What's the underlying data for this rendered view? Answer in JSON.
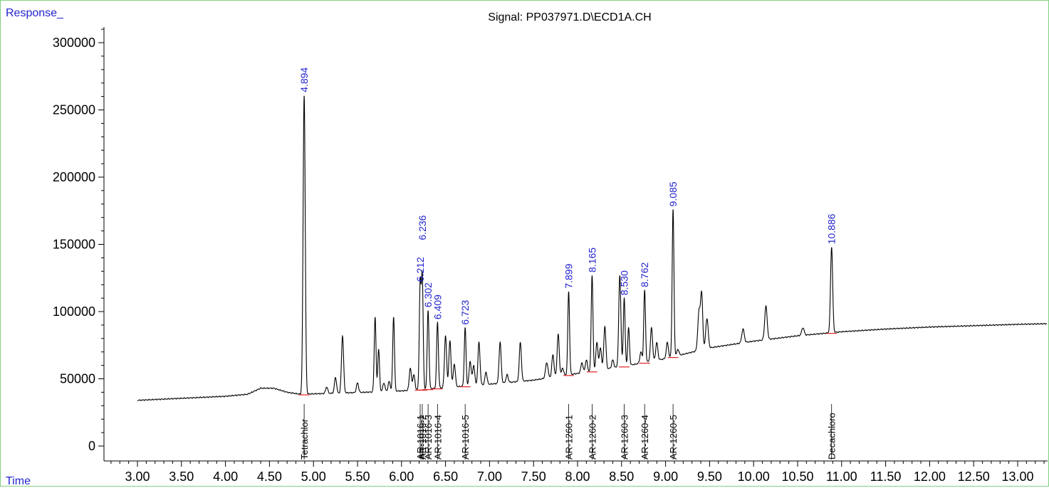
{
  "header": {
    "response_label": "Response_",
    "time_label": "Time"
  },
  "colors": {
    "frame": "#7fd17f",
    "signal": "#000000",
    "peak_label": "#2222cc",
    "baseline_mark": "#e02020"
  },
  "chart_data": {
    "type": "line",
    "title": "Signal: PP037971.D\\ECD1A.CH",
    "xlabel": "Time",
    "ylabel": "Response_",
    "xlim": [
      2.94,
      13.33
    ],
    "ylim": [
      -8000,
      315000
    ],
    "grid": false,
    "y_ticks": [
      0,
      50000,
      100000,
      150000,
      200000,
      250000,
      300000
    ],
    "x_ticks": [
      3.0,
      3.5,
      4.0,
      4.5,
      5.0,
      5.5,
      6.0,
      6.5,
      7.0,
      7.5,
      8.0,
      8.5,
      9.0,
      9.5,
      10.0,
      10.5,
      11.0,
      11.5,
      12.0,
      12.5,
      13.0
    ],
    "x_tick_labels": [
      "3.00",
      "3.50",
      "4.00",
      "4.50",
      "5.00",
      "5.50",
      "6.00",
      "6.50",
      "7.00",
      "7.50",
      "8.00",
      "8.50",
      "9.00",
      "9.50",
      "10.00",
      "10.50",
      "11.00",
      "11.50",
      "12.00",
      "12.50",
      "13.00"
    ],
    "baseline_points": [
      [
        3.0,
        34000
      ],
      [
        3.5,
        35500
      ],
      [
        4.0,
        37000
      ],
      [
        4.25,
        38500
      ],
      [
        4.4,
        43000
      ],
      [
        4.55,
        43000
      ],
      [
        4.7,
        40000
      ],
      [
        4.85,
        38500
      ],
      [
        5.0,
        38800
      ],
      [
        5.5,
        39800
      ],
      [
        6.0,
        41000
      ],
      [
        6.5,
        43500
      ],
      [
        7.0,
        46000
      ],
      [
        7.5,
        49000
      ],
      [
        8.0,
        54000
      ],
      [
        8.5,
        59000
      ],
      [
        9.0,
        65000
      ],
      [
        9.5,
        73000
      ],
      [
        10.0,
        78000
      ],
      [
        10.5,
        82000
      ],
      [
        11.0,
        85000
      ],
      [
        11.5,
        87000
      ],
      [
        12.0,
        88500
      ],
      [
        12.5,
        89500
      ],
      [
        13.0,
        90500
      ],
      [
        13.33,
        91000
      ]
    ],
    "peaks": [
      {
        "t": 4.894,
        "h": 261000,
        "w": 0.012
      },
      {
        "t": 5.15,
        "h": 44000,
        "w": 0.012
      },
      {
        "t": 5.25,
        "h": 51000,
        "w": 0.012
      },
      {
        "t": 5.33,
        "h": 82000,
        "w": 0.012
      },
      {
        "t": 5.5,
        "h": 47000,
        "w": 0.012
      },
      {
        "t": 5.7,
        "h": 96000,
        "w": 0.01
      },
      {
        "t": 5.74,
        "h": 72000,
        "w": 0.01
      },
      {
        "t": 5.8,
        "h": 47000,
        "w": 0.012
      },
      {
        "t": 5.86,
        "h": 48000,
        "w": 0.012
      },
      {
        "t": 5.91,
        "h": 96000,
        "w": 0.01
      },
      {
        "t": 6.1,
        "h": 58000,
        "w": 0.012
      },
      {
        "t": 6.14,
        "h": 53000,
        "w": 0.012
      },
      {
        "t": 6.212,
        "h": 120000,
        "w": 0.01
      },
      {
        "t": 6.236,
        "h": 125000,
        "w": 0.01
      },
      {
        "t": 6.302,
        "h": 101000,
        "w": 0.01
      },
      {
        "t": 6.409,
        "h": 92000,
        "w": 0.01
      },
      {
        "t": 6.5,
        "h": 82000,
        "w": 0.012
      },
      {
        "t": 6.55,
        "h": 78000,
        "w": 0.012
      },
      {
        "t": 6.6,
        "h": 61000,
        "w": 0.012
      },
      {
        "t": 6.723,
        "h": 88000,
        "w": 0.01
      },
      {
        "t": 6.78,
        "h": 63000,
        "w": 0.012
      },
      {
        "t": 6.82,
        "h": 60000,
        "w": 0.012
      },
      {
        "t": 6.88,
        "h": 77000,
        "w": 0.012
      },
      {
        "t": 6.96,
        "h": 55000,
        "w": 0.012
      },
      {
        "t": 7.12,
        "h": 77000,
        "w": 0.012
      },
      {
        "t": 7.2,
        "h": 53000,
        "w": 0.012
      },
      {
        "t": 7.35,
        "h": 77000,
        "w": 0.012
      },
      {
        "t": 7.65,
        "h": 62000,
        "w": 0.014
      },
      {
        "t": 7.72,
        "h": 68000,
        "w": 0.012
      },
      {
        "t": 7.78,
        "h": 83000,
        "w": 0.012
      },
      {
        "t": 7.83,
        "h": 58000,
        "w": 0.012
      },
      {
        "t": 7.899,
        "h": 115000,
        "w": 0.01
      },
      {
        "t": 8.05,
        "h": 62000,
        "w": 0.012
      },
      {
        "t": 8.1,
        "h": 64000,
        "w": 0.012
      },
      {
        "t": 8.165,
        "h": 127000,
        "w": 0.01
      },
      {
        "t": 8.22,
        "h": 77000,
        "w": 0.012
      },
      {
        "t": 8.26,
        "h": 73000,
        "w": 0.012
      },
      {
        "t": 8.31,
        "h": 89000,
        "w": 0.012
      },
      {
        "t": 8.4,
        "h": 64000,
        "w": 0.012
      },
      {
        "t": 8.48,
        "h": 127000,
        "w": 0.012
      },
      {
        "t": 8.53,
        "h": 110000,
        "w": 0.01
      },
      {
        "t": 8.58,
        "h": 88000,
        "w": 0.01
      },
      {
        "t": 8.72,
        "h": 70000,
        "w": 0.012
      },
      {
        "t": 8.762,
        "h": 116000,
        "w": 0.01
      },
      {
        "t": 8.84,
        "h": 88000,
        "w": 0.012
      },
      {
        "t": 8.9,
        "h": 77000,
        "w": 0.012
      },
      {
        "t": 9.02,
        "h": 77000,
        "w": 0.012
      },
      {
        "t": 9.085,
        "h": 176000,
        "w": 0.01
      },
      {
        "t": 9.14,
        "h": 72000,
        "w": 0.012
      },
      {
        "t": 9.38,
        "h": 100000,
        "w": 0.014
      },
      {
        "t": 9.41,
        "h": 112000,
        "w": 0.012
      },
      {
        "t": 9.47,
        "h": 95000,
        "w": 0.014
      },
      {
        "t": 9.88,
        "h": 87000,
        "w": 0.014
      },
      {
        "t": 10.14,
        "h": 104000,
        "w": 0.014
      },
      {
        "t": 10.56,
        "h": 88000,
        "w": 0.014
      },
      {
        "t": 10.886,
        "h": 148000,
        "w": 0.012
      }
    ],
    "peak_labels": [
      {
        "t": 4.894,
        "h": 261000,
        "text": "4.894"
      },
      {
        "t": 6.212,
        "h": 120000,
        "text": "6.212"
      },
      {
        "t": 6.236,
        "h": 125000,
        "text": "6.236",
        "y": 151000
      },
      {
        "t": 6.302,
        "h": 101000,
        "text": "6.302"
      },
      {
        "t": 6.409,
        "h": 92000,
        "text": "6.409"
      },
      {
        "t": 6.723,
        "h": 88000,
        "text": "6.723"
      },
      {
        "t": 7.899,
        "h": 115000,
        "text": "7.899"
      },
      {
        "t": 8.165,
        "h": 127000,
        "text": "8.165"
      },
      {
        "t": 8.53,
        "h": 110000,
        "text": "8.530"
      },
      {
        "t": 8.762,
        "h": 116000,
        "text": "8.762"
      },
      {
        "t": 9.085,
        "h": 176000,
        "text": "9.085"
      },
      {
        "t": 10.886,
        "h": 148000,
        "text": "10.886"
      }
    ],
    "compound_labels": [
      {
        "t": 4.894,
        "text": "Tetrachlor"
      },
      {
        "t": 6.212,
        "text": "AR-1016-1"
      },
      {
        "t": 6.236,
        "text": "AR-1016-2"
      },
      {
        "t": 6.302,
        "text": "AR-1016-3"
      },
      {
        "t": 6.409,
        "text": "AR-1016-4"
      },
      {
        "t": 6.723,
        "text": "AR-1016-5"
      },
      {
        "t": 7.899,
        "text": "AR-1260-1"
      },
      {
        "t": 8.165,
        "text": "AR-1260-2"
      },
      {
        "t": 8.53,
        "text": "AR-1260-3"
      },
      {
        "t": 8.762,
        "text": "AR-1260-4"
      },
      {
        "t": 9.085,
        "text": "AR-1260-5"
      },
      {
        "t": 10.886,
        "text": "Decachloro"
      }
    ]
  }
}
